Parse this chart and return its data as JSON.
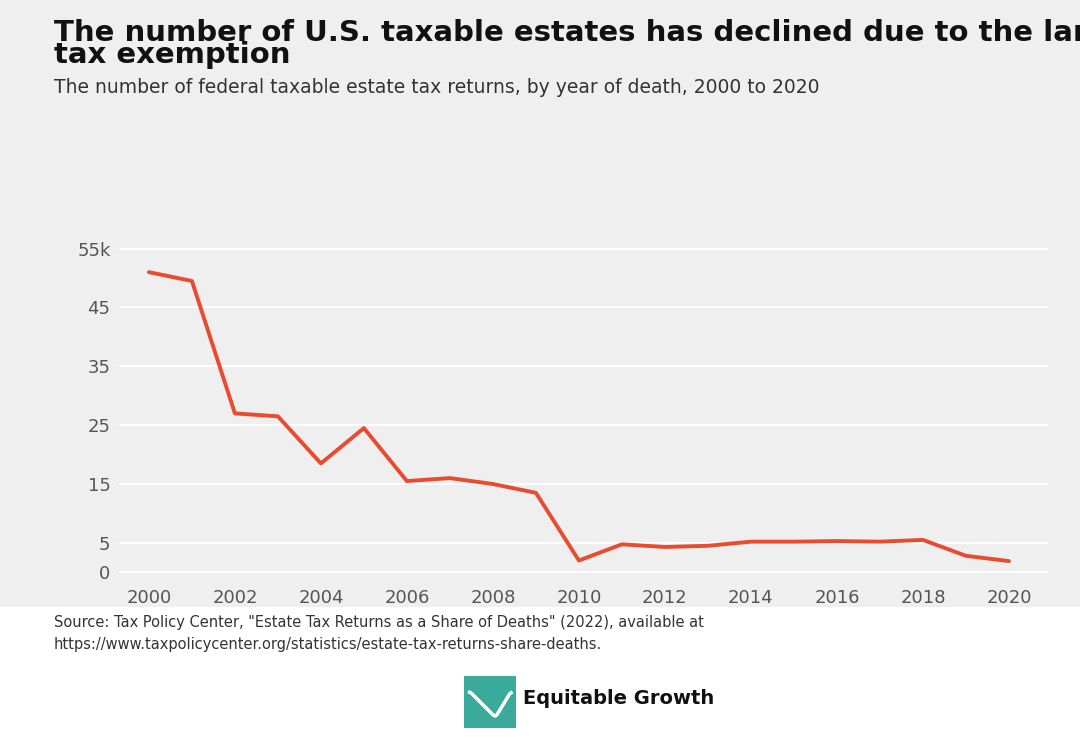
{
  "title_line1": "The number of U.S. taxable estates has declined due to the larger estate",
  "title_line2": "tax exemption",
  "subtitle": "The number of federal taxable estate tax returns, by year of death, 2000 to 2020",
  "source_line1": "Source: Tax Policy Center, \"Estate Tax Returns as a Share of Deaths\" (2022), available at",
  "source_line2": "https://www.taxpolicycenter.org/statistics/estate-tax-returns-share-deaths.",
  "logo_text": "Equitable Growth",
  "years": [
    2000,
    2001,
    2002,
    2003,
    2004,
    2005,
    2006,
    2007,
    2008,
    2009,
    2010,
    2011,
    2012,
    2013,
    2014,
    2015,
    2016,
    2017,
    2018,
    2019,
    2020
  ],
  "values": [
    51000,
    49500,
    27000,
    26500,
    18500,
    24500,
    15500,
    16000,
    15000,
    13500,
    2000,
    4750,
    4300,
    4500,
    5200,
    5200,
    5300,
    5200,
    5500,
    2800,
    1900
  ],
  "line_color": "#e84b2f",
  "line_width": 2.8,
  "background_color": "#efefef",
  "plot_bg_color": "#efefef",
  "grid_color": "#ffffff",
  "yticks": [
    0,
    5,
    15,
    25,
    35,
    45,
    55
  ],
  "ytick_labels": [
    "0",
    "5",
    "15",
    "25",
    "35",
    "45",
    "55k"
  ],
  "xticks": [
    2000,
    2002,
    2004,
    2006,
    2008,
    2010,
    2012,
    2014,
    2016,
    2018,
    2020
  ],
  "title_fontsize": 21,
  "subtitle_fontsize": 13.5,
  "tick_fontsize": 13,
  "source_fontsize": 10.5,
  "logo_fontsize": 14,
  "title_color": "#111111",
  "subtitle_color": "#333333",
  "tick_color": "#555555",
  "source_color": "#333333",
  "logo_color": "#111111",
  "logo_bg": "#3aab9a",
  "bottom_bg": "#ffffff"
}
